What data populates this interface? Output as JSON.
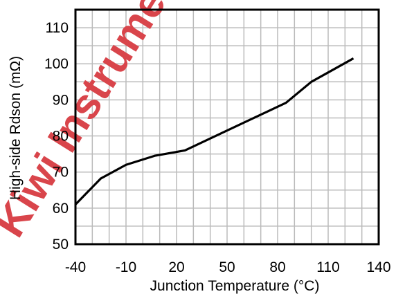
{
  "chart_data": {
    "type": "line",
    "title": "",
    "xlabel": "Junction Temperature (°C)",
    "ylabel": "High-side Rdson (mΩ)",
    "xlim": [
      -40,
      140
    ],
    "ylim": [
      50,
      115
    ],
    "x_ticks": [
      -40,
      -10,
      20,
      50,
      80,
      110,
      140
    ],
    "y_ticks": [
      50,
      60,
      70,
      80,
      90,
      100,
      110
    ],
    "x_tick_labels": [
      "-40",
      "-10",
      "20",
      "50",
      "80",
      "110",
      "140"
    ],
    "y_tick_labels": [
      "50",
      "60",
      "70",
      "80",
      "90",
      "100",
      "110"
    ],
    "grid": true,
    "grid_step_x": 10,
    "grid_step_y": 5,
    "series": [
      {
        "x": [
          -40,
          -25,
          -10,
          7,
          25,
          50,
          75,
          85,
          100,
          125
        ],
        "y": [
          61,
          68.2,
          72,
          74.5,
          76,
          81.5,
          87,
          89.2,
          95,
          101.5
        ]
      }
    ],
    "line_color": "#000000",
    "grid_color": "#bbbbbb",
    "watermark": {
      "text": "Kiwi Instruments",
      "color": "#d9454b"
    }
  }
}
